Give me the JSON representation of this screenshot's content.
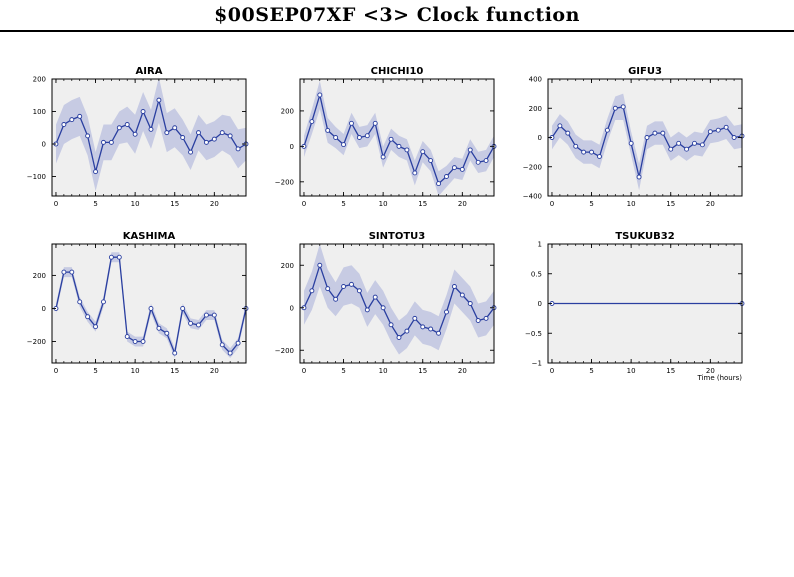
{
  "header": {
    "title": "$00SEP07XF <3>  Clock function"
  },
  "style": {
    "line_color": "#2a3fa0",
    "band_color": "#c7cbe3",
    "plot_bg": "#efefef"
  },
  "chart_data": [
    {
      "type": "line",
      "title": "AIRA",
      "xlabel": "",
      "ylabel": "",
      "xlim": [
        -0.5,
        24
      ],
      "ylim": [
        -160,
        200
      ],
      "xticks": [
        0,
        5,
        10,
        15,
        20
      ],
      "yticks": [
        -100,
        0,
        100,
        200
      ],
      "x": [
        0,
        1,
        2,
        3,
        4,
        5,
        6,
        7,
        8,
        9,
        10,
        11,
        12,
        13,
        14,
        15,
        16,
        17,
        18,
        19,
        20,
        21,
        22,
        23,
        24
      ],
      "values": [
        0,
        60,
        75,
        85,
        25,
        -85,
        5,
        5,
        50,
        60,
        30,
        100,
        45,
        135,
        35,
        50,
        20,
        -25,
        35,
        5,
        15,
        35,
        25,
        -15,
        0
      ],
      "band": [
        60,
        60,
        60,
        60,
        60,
        60,
        55,
        55,
        50,
        55,
        60,
        60,
        60,
        70,
        60,
        60,
        55,
        55,
        55,
        55,
        55,
        55,
        60,
        60,
        50
      ]
    },
    {
      "type": "line",
      "title": "CHICHI10",
      "xlabel": "",
      "ylabel": "",
      "xlim": [
        -0.5,
        24
      ],
      "ylim": [
        -280,
        380
      ],
      "xticks": [
        0,
        5,
        10,
        15,
        20
      ],
      "yticks": [
        -200,
        0,
        200
      ],
      "x": [
        0,
        1,
        2,
        3,
        4,
        5,
        6,
        7,
        8,
        9,
        10,
        11,
        12,
        13,
        14,
        15,
        16,
        17,
        18,
        19,
        20,
        21,
        22,
        23,
        24
      ],
      "values": [
        0,
        140,
        290,
        90,
        50,
        10,
        130,
        50,
        60,
        130,
        -60,
        40,
        0,
        -20,
        -150,
        -30,
        -80,
        -210,
        -170,
        -120,
        -130,
        -20,
        -90,
        -80,
        0
      ],
      "band": [
        60,
        70,
        80,
        70,
        60,
        60,
        60,
        60,
        60,
        60,
        60,
        60,
        60,
        60,
        70,
        60,
        60,
        70,
        60,
        60,
        60,
        60,
        60,
        60,
        60
      ]
    },
    {
      "type": "line",
      "title": "GIFU3",
      "xlabel": "",
      "ylabel": "",
      "xlim": [
        -0.5,
        24
      ],
      "ylim": [
        -400,
        400
      ],
      "xticks": [
        0,
        5,
        10,
        15,
        20
      ],
      "yticks": [
        -400,
        -200,
        0,
        200,
        400
      ],
      "x": [
        0,
        1,
        2,
        3,
        4,
        5,
        6,
        7,
        8,
        9,
        10,
        11,
        12,
        13,
        14,
        15,
        16,
        17,
        18,
        19,
        20,
        21,
        22,
        23,
        24
      ],
      "values": [
        0,
        80,
        30,
        -60,
        -100,
        -100,
        -130,
        50,
        200,
        210,
        -40,
        -270,
        0,
        30,
        30,
        -80,
        -40,
        -80,
        -40,
        -50,
        40,
        50,
        70,
        0,
        10
      ],
      "band": [
        80,
        80,
        80,
        80,
        80,
        80,
        80,
        80,
        80,
        90,
        80,
        90,
        80,
        80,
        80,
        80,
        80,
        80,
        80,
        80,
        80,
        80,
        80,
        80,
        80
      ]
    },
    {
      "type": "line",
      "title": "KASHIMA",
      "xlabel": "",
      "ylabel": "",
      "xlim": [
        -0.5,
        24
      ],
      "ylim": [
        -330,
        390
      ],
      "xticks": [
        0,
        5,
        10,
        15,
        20
      ],
      "yticks": [
        -200,
        0,
        200
      ],
      "x": [
        0,
        1,
        2,
        3,
        4,
        5,
        6,
        7,
        8,
        9,
        10,
        11,
        12,
        13,
        14,
        15,
        16,
        17,
        18,
        19,
        20,
        21,
        22,
        23,
        24
      ],
      "values": [
        0,
        220,
        220,
        40,
        -50,
        -110,
        40,
        310,
        310,
        -170,
        -200,
        -200,
        0,
        -120,
        -150,
        -270,
        0,
        -90,
        -100,
        -40,
        -40,
        -220,
        -270,
        -210,
        0
      ],
      "band": [
        30,
        30,
        30,
        30,
        30,
        30,
        30,
        30,
        30,
        30,
        30,
        30,
        30,
        30,
        30,
        30,
        30,
        30,
        30,
        30,
        30,
        30,
        30,
        30,
        30
      ]
    },
    {
      "type": "line",
      "title": "SINTOTU3",
      "xlabel": "",
      "ylabel": "",
      "xlim": [
        -0.5,
        24
      ],
      "ylim": [
        -260,
        300
      ],
      "xticks": [
        0,
        5,
        10,
        15,
        20
      ],
      "yticks": [
        -200,
        0,
        200
      ],
      "x": [
        0,
        1,
        2,
        3,
        4,
        5,
        6,
        7,
        8,
        9,
        10,
        11,
        12,
        13,
        14,
        15,
        16,
        17,
        18,
        19,
        20,
        21,
        22,
        23,
        24
      ],
      "values": [
        0,
        80,
        200,
        90,
        40,
        100,
        110,
        80,
        -10,
        50,
        0,
        -80,
        -140,
        -110,
        -50,
        -90,
        -100,
        -120,
        -20,
        100,
        60,
        20,
        -60,
        -50,
        0
      ],
      "band": [
        80,
        90,
        100,
        90,
        80,
        90,
        90,
        80,
        80,
        80,
        80,
        80,
        80,
        80,
        80,
        80,
        80,
        80,
        80,
        80,
        80,
        80,
        80,
        80,
        80
      ]
    },
    {
      "type": "line",
      "title": "TSUKUB32",
      "xlabel": "Time (hours)",
      "ylabel": "",
      "xlim": [
        -0.5,
        24
      ],
      "ylim": [
        -1,
        1
      ],
      "xticks": [
        0,
        5,
        10,
        15,
        20
      ],
      "yticks": [
        -1,
        -0.5,
        0,
        0.5,
        1
      ],
      "x": [
        0,
        24
      ],
      "values": [
        0,
        0
      ],
      "band": [
        0,
        0
      ]
    }
  ]
}
